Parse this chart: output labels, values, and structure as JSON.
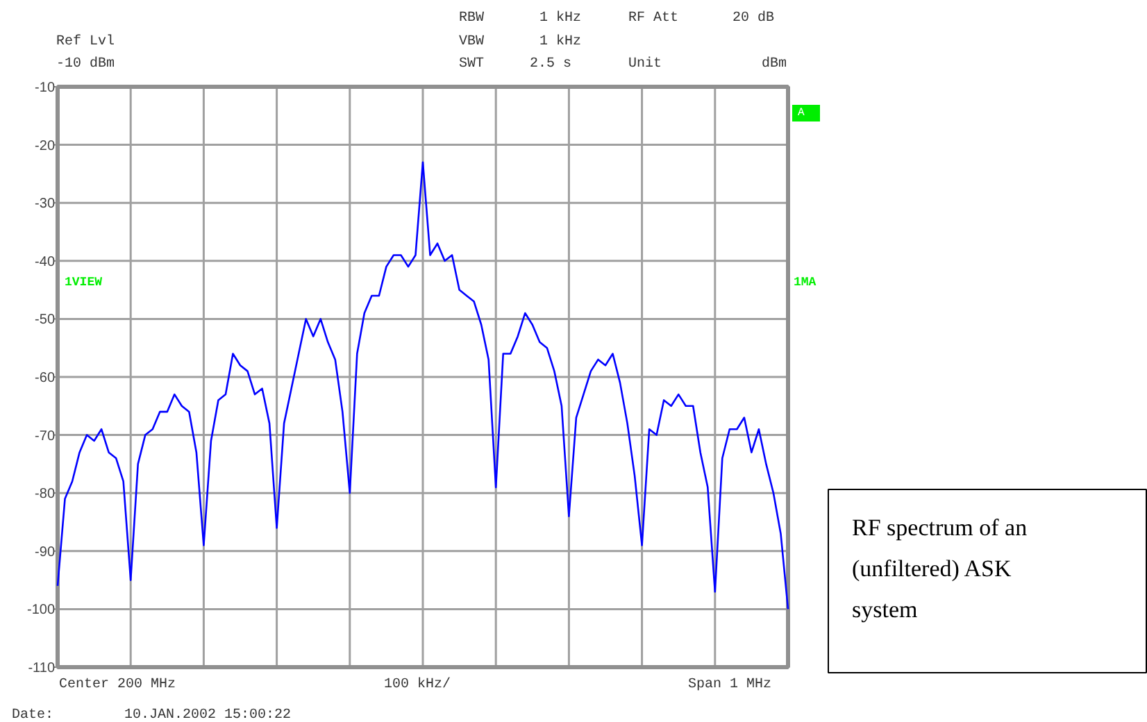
{
  "chart_data": {
    "type": "line",
    "ylim": [
      -110,
      -10
    ],
    "categories": [
      null,
      null,
      null,
      null,
      null,
      null,
      null,
      null,
      null,
      null,
      null,
      null,
      null,
      null,
      null,
      null,
      null,
      null,
      null,
      null,
      null,
      null,
      null,
      null,
      null,
      null,
      null,
      null,
      null,
      null,
      null,
      null,
      null,
      null,
      null,
      null,
      null,
      null,
      null,
      null,
      null,
      null,
      null,
      null,
      null,
      null,
      null,
      null,
      null,
      null,
      null,
      null,
      null,
      null,
      null,
      null,
      null,
      null,
      null,
      null,
      null,
      null,
      null,
      null,
      null,
      null,
      null,
      null,
      null,
      null,
      null,
      null,
      null,
      null,
      null,
      null,
      null,
      null,
      null,
      null,
      null,
      null,
      null,
      null,
      null,
      null,
      null,
      null,
      null,
      null,
      null,
      null,
      null,
      null,
      null,
      null,
      null,
      null,
      null,
      null,
      null
    ],
    "yticks": [
      -10,
      -20,
      -30,
      -40,
      -50,
      -60,
      -70,
      -80,
      -90,
      -100,
      -110
    ],
    "tick_labels": "y",
    "grid": true,
    "line_style": "solid",
    "series": [
      {
        "color": "#0000ff",
        "values": [
          -96,
          -81,
          -78,
          -73,
          -70,
          -71,
          -69,
          -73,
          -74,
          -78,
          -95,
          -75,
          -70,
          -69,
          -66,
          -66,
          -63,
          -65,
          -66,
          -73,
          -89,
          -71,
          -64,
          -63,
          -56,
          -58,
          -59,
          -63,
          -62,
          -68,
          -86,
          -68,
          -62,
          -56,
          -50,
          -53,
          -50,
          -54,
          -57,
          -66,
          -80,
          -56,
          -49,
          -46,
          -46,
          -41,
          -39,
          -39,
          -41,
          -39,
          -23,
          -39,
          -37,
          -40,
          -39,
          -45,
          -46,
          -47,
          -51,
          -57,
          -79,
          -56,
          -56,
          -53,
          -49,
          -51,
          -54,
          -55,
          -59,
          -65,
          -84,
          -67,
          -63,
          -59,
          -57,
          -58,
          -56,
          -61,
          -68,
          -77,
          -89,
          -69,
          -70,
          -64,
          -65,
          -63,
          -65,
          -65,
          -73,
          -79,
          -97,
          -74,
          -69,
          -69,
          -67,
          -73,
          -69,
          -75,
          -80,
          -87,
          -100
        ]
      }
    ],
    "annotations": [
      "Ref Lvl",
      "-10 dBm",
      "RBW",
      "1 kHz",
      "RF Att",
      "20 dB",
      "VBW",
      "1 kHz",
      "SWT",
      "2.5 s",
      "Unit",
      "dBm",
      "Center 200 MHz",
      "100 kHz/",
      "Span 1 MHz",
      "Date:",
      "10.JAN.2002  15:00:22",
      "A",
      "1VIEW",
      "1MA",
      "RF spectrum of an\n(unfiltered) ASK\nsystem"
    ]
  }
}
